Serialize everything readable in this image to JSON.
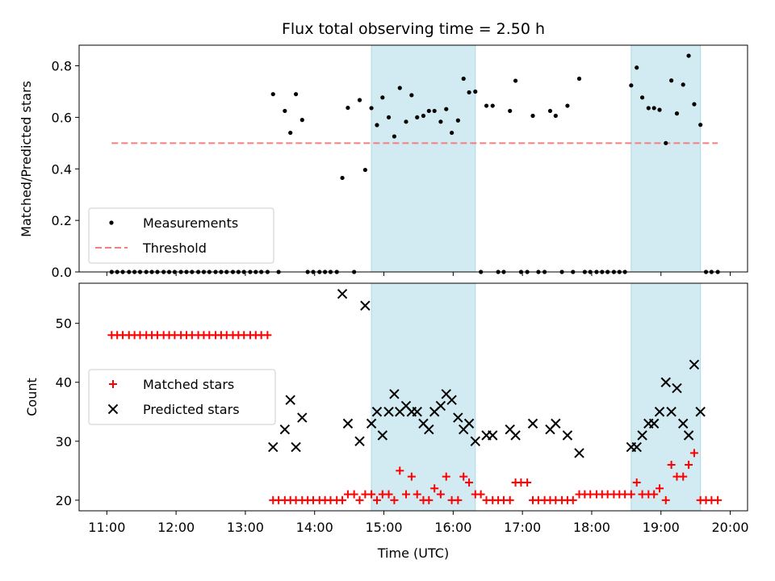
{
  "chart_data": {
    "type": "scatter",
    "title": "Flux total observing time = 2.50 h",
    "xlabel": "Time (UTC)",
    "x_ticks": [
      "11:00",
      "12:00",
      "13:00",
      "14:00",
      "15:00",
      "16:00",
      "17:00",
      "18:00",
      "19:00",
      "20:00"
    ],
    "xlim_hours": [
      10.6,
      20.25
    ],
    "shaded_intervals_hours": [
      [
        14.82,
        16.32
      ],
      [
        18.57,
        19.57
      ]
    ],
    "shade_color": "#add8e6",
    "top": {
      "ylabel": "Matched/Predicted stars",
      "ylim": [
        0,
        0.88
      ],
      "y_ticks": [
        "0.0",
        "0.2",
        "0.4",
        "0.6",
        "0.8"
      ],
      "threshold": {
        "name": "Threshold",
        "value": 0.5,
        "x_range_hours": [
          11.07,
          19.82
        ],
        "color": "#f08080"
      },
      "measurements": {
        "name": "Measurements",
        "color": "#000000",
        "points": [
          [
            11.07,
            0
          ],
          [
            11.15,
            0
          ],
          [
            11.23,
            0
          ],
          [
            11.32,
            0
          ],
          [
            11.4,
            0
          ],
          [
            11.48,
            0
          ],
          [
            11.57,
            0
          ],
          [
            11.65,
            0
          ],
          [
            11.73,
            0
          ],
          [
            11.82,
            0
          ],
          [
            11.9,
            0
          ],
          [
            11.98,
            0
          ],
          [
            12.07,
            0
          ],
          [
            12.15,
            0
          ],
          [
            12.23,
            0
          ],
          [
            12.32,
            0
          ],
          [
            12.4,
            0
          ],
          [
            12.48,
            0
          ],
          [
            12.57,
            0
          ],
          [
            12.65,
            0
          ],
          [
            12.73,
            0
          ],
          [
            12.82,
            0
          ],
          [
            12.9,
            0
          ],
          [
            12.98,
            0
          ],
          [
            13.07,
            0
          ],
          [
            13.15,
            0
          ],
          [
            13.23,
            0
          ],
          [
            13.32,
            0
          ],
          [
            13.4,
            0.69
          ],
          [
            13.48,
            0
          ],
          [
            13.57,
            0.625
          ],
          [
            13.65,
            0.54
          ],
          [
            13.73,
            0.69
          ],
          [
            13.82,
            0.59
          ],
          [
            13.9,
            0
          ],
          [
            13.98,
            0
          ],
          [
            14.07,
            0
          ],
          [
            14.15,
            0
          ],
          [
            14.23,
            0
          ],
          [
            14.32,
            0
          ],
          [
            14.4,
            0.365
          ],
          [
            14.48,
            0.637
          ],
          [
            14.57,
            0
          ],
          [
            14.65,
            0.667
          ],
          [
            14.73,
            0.396
          ],
          [
            14.82,
            0.636
          ],
          [
            14.9,
            0.57
          ],
          [
            14.98,
            0.677
          ],
          [
            15.07,
            0.6
          ],
          [
            15.15,
            0.526
          ],
          [
            15.23,
            0.714
          ],
          [
            15.32,
            0.583
          ],
          [
            15.4,
            0.686
          ],
          [
            15.48,
            0.6
          ],
          [
            15.57,
            0.606
          ],
          [
            15.65,
            0.625
          ],
          [
            15.73,
            0.625
          ],
          [
            15.82,
            0.583
          ],
          [
            15.9,
            0.632
          ],
          [
            15.98,
            0.54
          ],
          [
            16.07,
            0.588
          ],
          [
            16.15,
            0.75
          ],
          [
            16.23,
            0.697
          ],
          [
            16.32,
            0.7
          ],
          [
            16.4,
            0
          ],
          [
            16.48,
            0.645
          ],
          [
            16.57,
            0.645
          ],
          [
            16.65,
            0
          ],
          [
            16.73,
            0
          ],
          [
            16.82,
            0.625
          ],
          [
            16.9,
            0.742
          ],
          [
            16.98,
            0
          ],
          [
            17.07,
            0
          ],
          [
            17.15,
            0.606
          ],
          [
            17.23,
            0
          ],
          [
            17.32,
            0
          ],
          [
            17.4,
            0.625
          ],
          [
            17.48,
            0.606
          ],
          [
            17.57,
            0
          ],
          [
            17.65,
            0.645
          ],
          [
            17.73,
            0
          ],
          [
            17.82,
            0.75
          ],
          [
            17.9,
            0
          ],
          [
            17.98,
            0
          ],
          [
            18.07,
            0
          ],
          [
            18.15,
            0
          ],
          [
            18.23,
            0
          ],
          [
            18.32,
            0
          ],
          [
            18.4,
            0
          ],
          [
            18.48,
            0
          ],
          [
            18.57,
            0.724
          ],
          [
            18.65,
            0.793
          ],
          [
            18.73,
            0.677
          ],
          [
            18.82,
            0.636
          ],
          [
            18.9,
            0.636
          ],
          [
            18.98,
            0.629
          ],
          [
            19.07,
            0.5
          ],
          [
            19.15,
            0.743
          ],
          [
            19.23,
            0.615
          ],
          [
            19.32,
            0.727
          ],
          [
            19.4,
            0.839
          ],
          [
            19.48,
            0.651
          ],
          [
            19.57,
            0.571
          ],
          [
            19.65,
            0
          ],
          [
            19.73,
            0
          ],
          [
            19.82,
            0
          ]
        ]
      }
    },
    "bottom": {
      "ylabel": "Count",
      "ylim": [
        18.2,
        56.8
      ],
      "y_ticks": [
        "20",
        "30",
        "40",
        "50"
      ],
      "matched": {
        "name": "Matched stars",
        "color": "#ff0000",
        "points": [
          [
            11.07,
            48
          ],
          [
            11.15,
            48
          ],
          [
            11.23,
            48
          ],
          [
            11.32,
            48
          ],
          [
            11.4,
            48
          ],
          [
            11.48,
            48
          ],
          [
            11.57,
            48
          ],
          [
            11.65,
            48
          ],
          [
            11.73,
            48
          ],
          [
            11.82,
            48
          ],
          [
            11.9,
            48
          ],
          [
            11.98,
            48
          ],
          [
            12.07,
            48
          ],
          [
            12.15,
            48
          ],
          [
            12.23,
            48
          ],
          [
            12.32,
            48
          ],
          [
            12.4,
            48
          ],
          [
            12.48,
            48
          ],
          [
            12.57,
            48
          ],
          [
            12.65,
            48
          ],
          [
            12.73,
            48
          ],
          [
            12.82,
            48
          ],
          [
            12.9,
            48
          ],
          [
            12.98,
            48
          ],
          [
            13.07,
            48
          ],
          [
            13.15,
            48
          ],
          [
            13.23,
            48
          ],
          [
            13.32,
            48
          ],
          [
            13.4,
            20
          ],
          [
            13.48,
            20
          ],
          [
            13.57,
            20
          ],
          [
            13.65,
            20
          ],
          [
            13.73,
            20
          ],
          [
            13.82,
            20
          ],
          [
            13.9,
            20
          ],
          [
            13.98,
            20
          ],
          [
            14.07,
            20
          ],
          [
            14.15,
            20
          ],
          [
            14.23,
            20
          ],
          [
            14.32,
            20
          ],
          [
            14.4,
            20
          ],
          [
            14.48,
            21
          ],
          [
            14.57,
            21
          ],
          [
            14.65,
            20
          ],
          [
            14.73,
            21
          ],
          [
            14.82,
            21
          ],
          [
            14.9,
            20
          ],
          [
            14.98,
            21
          ],
          [
            15.07,
            21
          ],
          [
            15.15,
            20
          ],
          [
            15.23,
            25
          ],
          [
            15.32,
            21
          ],
          [
            15.4,
            24
          ],
          [
            15.48,
            21
          ],
          [
            15.57,
            20
          ],
          [
            15.65,
            20
          ],
          [
            15.73,
            22
          ],
          [
            15.82,
            21
          ],
          [
            15.9,
            24
          ],
          [
            15.98,
            20
          ],
          [
            16.07,
            20
          ],
          [
            16.15,
            24
          ],
          [
            16.23,
            23
          ],
          [
            16.32,
            21
          ],
          [
            16.4,
            21
          ],
          [
            16.48,
            20
          ],
          [
            16.57,
            20
          ],
          [
            16.65,
            20
          ],
          [
            16.73,
            20
          ],
          [
            16.82,
            20
          ],
          [
            16.9,
            23
          ],
          [
            16.98,
            23
          ],
          [
            17.07,
            23
          ],
          [
            17.15,
            20
          ],
          [
            17.23,
            20
          ],
          [
            17.32,
            20
          ],
          [
            17.4,
            20
          ],
          [
            17.48,
            20
          ],
          [
            17.57,
            20
          ],
          [
            17.65,
            20
          ],
          [
            17.73,
            20
          ],
          [
            17.82,
            21
          ],
          [
            17.9,
            21
          ],
          [
            17.98,
            21
          ],
          [
            18.07,
            21
          ],
          [
            18.15,
            21
          ],
          [
            18.23,
            21
          ],
          [
            18.32,
            21
          ],
          [
            18.4,
            21
          ],
          [
            18.48,
            21
          ],
          [
            18.57,
            21
          ],
          [
            18.65,
            23
          ],
          [
            18.73,
            21
          ],
          [
            18.82,
            21
          ],
          [
            18.9,
            21
          ],
          [
            18.98,
            22
          ],
          [
            19.07,
            20
          ],
          [
            19.15,
            26
          ],
          [
            19.23,
            24
          ],
          [
            19.32,
            24
          ],
          [
            19.4,
            26
          ],
          [
            19.48,
            28
          ],
          [
            19.57,
            20
          ],
          [
            19.65,
            20
          ],
          [
            19.73,
            20
          ],
          [
            19.82,
            20
          ]
        ]
      },
      "predicted": {
        "name": "Predicted stars",
        "color": "#000000",
        "points": [
          [
            13.4,
            29
          ],
          [
            13.57,
            32
          ],
          [
            13.65,
            37
          ],
          [
            13.73,
            29
          ],
          [
            13.82,
            34
          ],
          [
            14.4,
            55
          ],
          [
            14.48,
            33
          ],
          [
            14.65,
            30
          ],
          [
            14.73,
            53
          ],
          [
            14.82,
            33
          ],
          [
            14.9,
            35
          ],
          [
            14.98,
            31
          ],
          [
            15.07,
            35
          ],
          [
            15.15,
            38
          ],
          [
            15.23,
            35
          ],
          [
            15.32,
            36
          ],
          [
            15.4,
            35
          ],
          [
            15.48,
            35
          ],
          [
            15.57,
            33
          ],
          [
            15.65,
            32
          ],
          [
            15.73,
            35
          ],
          [
            15.82,
            36
          ],
          [
            15.9,
            38
          ],
          [
            15.98,
            37
          ],
          [
            16.07,
            34
          ],
          [
            16.15,
            32
          ],
          [
            16.23,
            33
          ],
          [
            16.32,
            30
          ],
          [
            16.48,
            31
          ],
          [
            16.57,
            31
          ],
          [
            16.82,
            32
          ],
          [
            16.9,
            31
          ],
          [
            17.15,
            33
          ],
          [
            17.4,
            32
          ],
          [
            17.48,
            33
          ],
          [
            17.65,
            31
          ],
          [
            17.82,
            28
          ],
          [
            18.57,
            29
          ],
          [
            18.65,
            29
          ],
          [
            18.73,
            31
          ],
          [
            18.82,
            33
          ],
          [
            18.9,
            33
          ],
          [
            18.98,
            35
          ],
          [
            19.07,
            40
          ],
          [
            19.15,
            35
          ],
          [
            19.23,
            39
          ],
          [
            19.32,
            33
          ],
          [
            19.4,
            31
          ],
          [
            19.48,
            43
          ],
          [
            19.57,
            35
          ]
        ]
      }
    }
  }
}
